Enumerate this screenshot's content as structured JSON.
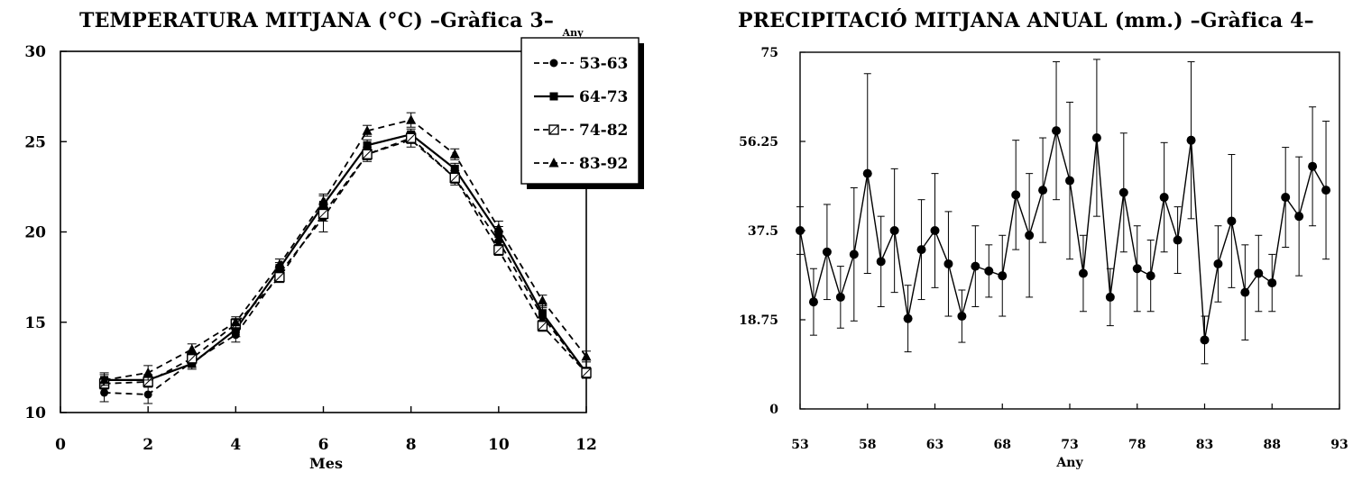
{
  "chart_data": [
    {
      "type": "line",
      "title": "TEMPERATURA MITJANA (°C) –Gràfica 3–",
      "legend_title": "Any",
      "xlabel": "Mes",
      "ylabel": "",
      "xlim": [
        0,
        12
      ],
      "ylim": [
        10,
        30
      ],
      "x_ticks": [
        "0",
        "2",
        "4",
        "6",
        "8",
        "10",
        "12"
      ],
      "y_ticks": [
        "10",
        "15",
        "20",
        "25",
        "30"
      ],
      "legend_position": "top-right",
      "grid": false,
      "x": [
        1,
        2,
        3,
        4,
        5,
        6,
        7,
        8,
        9,
        10,
        11,
        12
      ],
      "series": [
        {
          "name": "53-63",
          "marker": "circle",
          "dash": "dashed",
          "values": [
            11.1,
            11.0,
            12.8,
            14.3,
            17.7,
            20.8,
            24.3,
            25.1,
            23.0,
            19.5,
            15.3,
            12.2
          ],
          "errors": [
            0.5,
            0.5,
            0.3,
            0.4,
            0.4,
            0.8,
            0.4,
            0.4,
            0.4,
            0.5,
            0.5,
            0.3
          ]
        },
        {
          "name": "64-73",
          "marker": "square",
          "dash": "solid",
          "values": [
            11.8,
            11.8,
            12.7,
            14.6,
            18.0,
            21.5,
            24.8,
            25.4,
            23.5,
            19.9,
            15.5,
            12.2
          ],
          "errors": [
            0.4,
            0.3,
            0.3,
            0.4,
            0.3,
            0.5,
            0.3,
            0.3,
            0.3,
            0.4,
            0.4,
            0.3
          ]
        },
        {
          "name": "74-82",
          "marker": "square-open",
          "dash": "dashed",
          "values": [
            11.6,
            11.7,
            13.0,
            14.9,
            17.5,
            21.0,
            24.3,
            25.2,
            23.0,
            19.0,
            14.8,
            12.2
          ],
          "errors": [
            0.3,
            0.3,
            0.3,
            0.3,
            0.3,
            0.4,
            0.3,
            0.3,
            0.3,
            0.3,
            0.3,
            0.3
          ]
        },
        {
          "name": "83-92",
          "marker": "triangle",
          "dash": "dashed",
          "values": [
            11.8,
            12.2,
            13.5,
            15.0,
            18.2,
            21.7,
            25.6,
            26.2,
            24.3,
            20.2,
            16.2,
            13.1
          ],
          "errors": [
            0.3,
            0.4,
            0.3,
            0.3,
            0.3,
            0.4,
            0.3,
            0.4,
            0.3,
            0.4,
            0.3,
            0.3
          ]
        }
      ]
    },
    {
      "type": "line",
      "title": "PRECIPITACIÓ MITJANA ANUAL (mm.) –Gràfica 4–",
      "xlabel": "Any",
      "ylabel": "",
      "xlim": [
        53,
        93
      ],
      "ylim": [
        0,
        75
      ],
      "x_ticks": [
        "53",
        "58",
        "63",
        "68",
        "73",
        "78",
        "83",
        "88",
        "93"
      ],
      "y_ticks": [
        "0",
        "18.75",
        "37.5",
        "56.25",
        "75"
      ],
      "grid": false,
      "x": [
        53,
        54,
        55,
        56,
        57,
        58,
        59,
        60,
        61,
        62,
        63,
        64,
        65,
        66,
        67,
        68,
        69,
        70,
        71,
        72,
        73,
        74,
        75,
        76,
        77,
        78,
        79,
        80,
        81,
        82,
        83,
        84,
        85,
        86,
        87,
        88,
        89,
        90,
        91,
        92
      ],
      "series": [
        {
          "name": "",
          "values": [
            37.5,
            22.5,
            33.0,
            23.5,
            32.5,
            49.5,
            31.0,
            37.5,
            19.0,
            33.5,
            37.5,
            30.5,
            19.5,
            30.0,
            29.0,
            28.0,
            45.0,
            36.5,
            46.0,
            58.5,
            48.0,
            28.5,
            57.0,
            23.5,
            45.5,
            29.5,
            28.0,
            44.5,
            35.5,
            56.5,
            14.5,
            30.5,
            39.5,
            24.5,
            28.5,
            26.5,
            44.5,
            40.5,
            51.0,
            46.0
          ],
          "errors": [
            5.0,
            7.0,
            10.0,
            6.5,
            14.0,
            21.0,
            9.5,
            13.0,
            7.0,
            10.5,
            12.0,
            11.0,
            5.5,
            8.5,
            5.5,
            8.5,
            11.5,
            13.0,
            11.0,
            14.5,
            16.5,
            8.0,
            16.5,
            6.0,
            12.5,
            9.0,
            7.5,
            11.5,
            7.0,
            16.5,
            5.0,
            8.0,
            14.0,
            10.0,
            8.0,
            6.0,
            10.5,
            12.5,
            12.5,
            14.5
          ]
        }
      ]
    }
  ]
}
